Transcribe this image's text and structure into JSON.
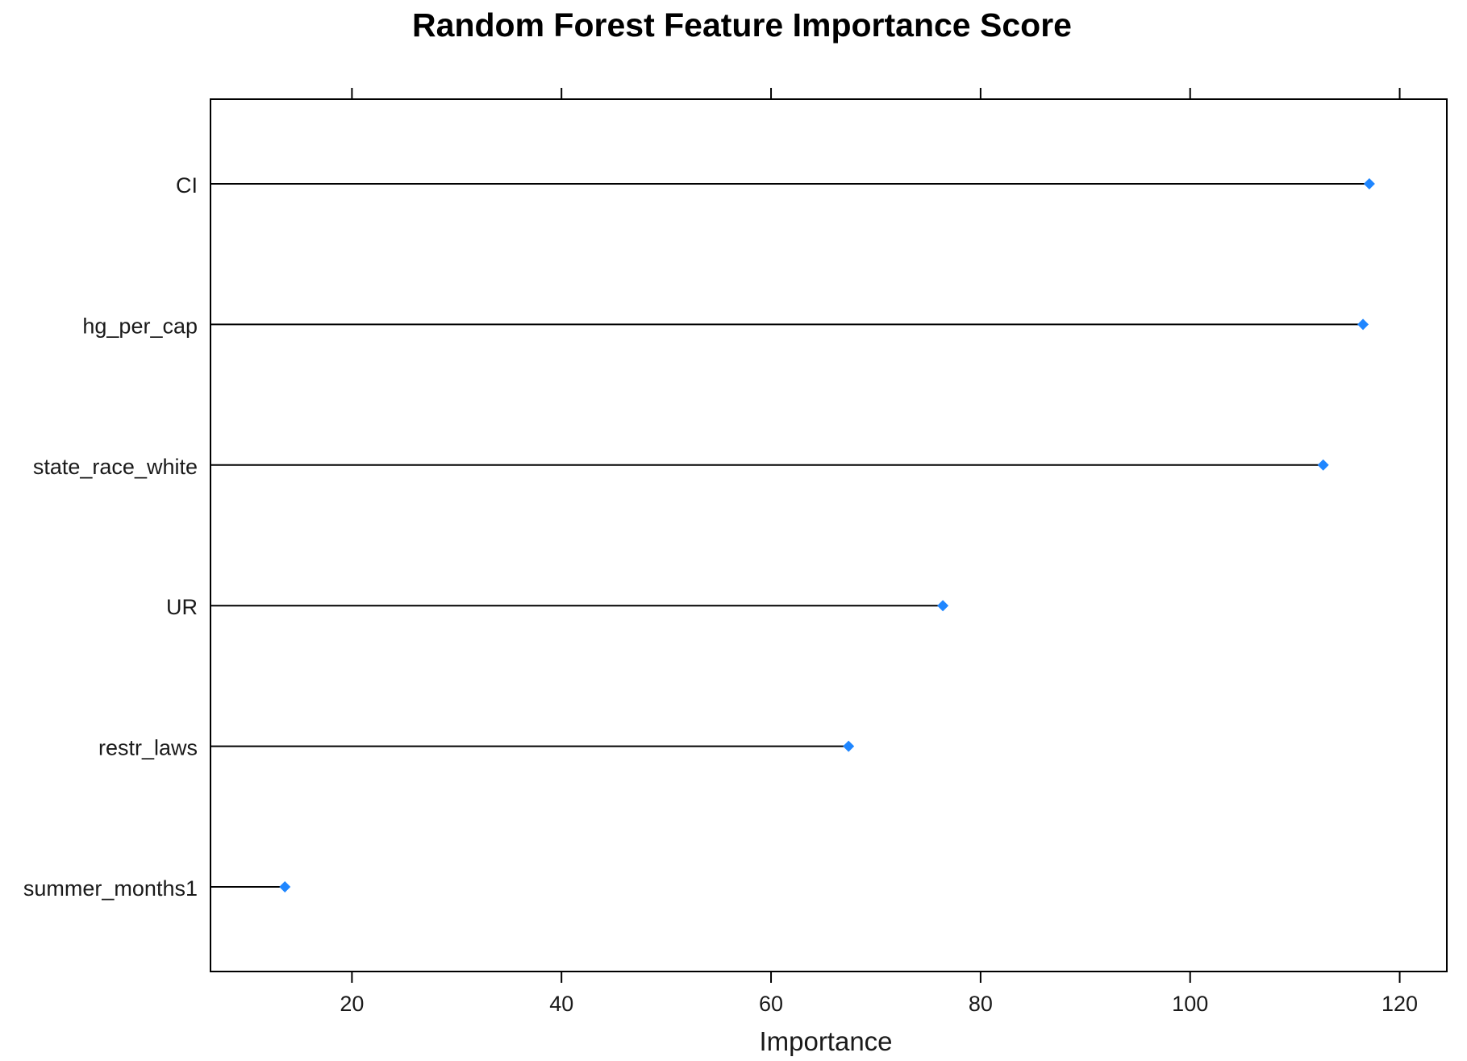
{
  "chart_data": {
    "type": "dot",
    "title": "Random Forest Feature Importance Score",
    "xlabel": "Importance",
    "ylabel": "",
    "xlim": [
      6.5,
      124.5
    ],
    "xticks": [
      20,
      40,
      60,
      80,
      100,
      120
    ],
    "categories": [
      "CI",
      "hg_per_cap",
      "state_race_white",
      "UR",
      "restr_laws",
      "summer_months1"
    ],
    "values": [
      117.1,
      116.5,
      112.7,
      76.4,
      67.4,
      13.6
    ],
    "point_color": "#1f86ff",
    "line_color": "#000000",
    "grid": false,
    "legend": "none"
  }
}
